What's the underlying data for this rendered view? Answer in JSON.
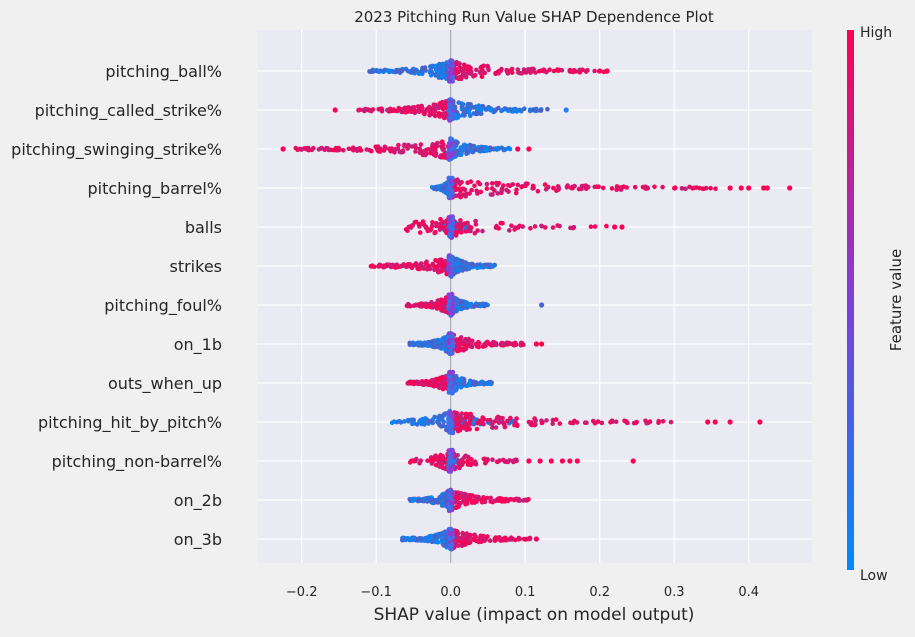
{
  "chart_data": {
    "type": "scatter",
    "subtype": "shap-beeswarm",
    "title": "2023 Pitching Run Value SHAP Dependence Plot",
    "xlabel": "SHAP value (impact on model output)",
    "ylabel": "",
    "xlim": [
      -0.26,
      0.485
    ],
    "x_ticks": [
      -0.2,
      -0.1,
      0.0,
      0.1,
      0.2,
      0.3,
      0.4
    ],
    "x_tick_labels": [
      "−0.2",
      "−0.1",
      "0.0",
      "0.1",
      "0.2",
      "0.3",
      "0.4"
    ],
    "grid": true,
    "colorbar": {
      "label": "Feature value",
      "high_label": "High",
      "low_label": "Low",
      "low_color": "#008bfb",
      "high_color": "#ff0052"
    },
    "features": [
      {
        "name": "pitching_ball%",
        "low_min": -0.11,
        "low_max": -0.005,
        "high_min": 0.0,
        "high_max": 0.21,
        "sparse": [
          0.2,
          0.21
        ]
      },
      {
        "name": "pitching_called_strike%",
        "low_min": 0.0,
        "low_max": 0.13,
        "high_min": -0.125,
        "high_max": 0.0,
        "sparse": [
          -0.155,
          0.155
        ]
      },
      {
        "name": "pitching_swinging_strike%",
        "low_min": 0.0,
        "low_max": 0.08,
        "high_min": -0.21,
        "high_max": 0.0,
        "sparse": [
          -0.225,
          0.09,
          0.105
        ]
      },
      {
        "name": "pitching_barrel%",
        "low_min": -0.025,
        "low_max": 0.0,
        "high_min": 0.0,
        "high_max": 0.36,
        "sparse": [
          0.375,
          0.39,
          0.4,
          0.42,
          0.425,
          0.455
        ]
      },
      {
        "name": "balls",
        "low_min": -0.01,
        "low_max": 0.025,
        "high_min": -0.06,
        "high_max": 0.21,
        "sparse": [
          0.22,
          0.23
        ]
      },
      {
        "name": "strikes",
        "low_min": 0.0,
        "low_max": 0.06,
        "high_min": -0.11,
        "high_max": 0.0,
        "sparse": []
      },
      {
        "name": "pitching_foul%",
        "low_min": 0.0,
        "low_max": 0.05,
        "high_min": -0.06,
        "high_max": 0.0,
        "sparse": [
          0.122
        ]
      },
      {
        "name": "on_1b",
        "low_min": -0.055,
        "low_max": 0.0,
        "high_min": 0.0,
        "high_max": 0.1,
        "sparse": [
          0.115,
          0.122
        ]
      },
      {
        "name": "outs_when_up",
        "low_min": 0.0,
        "low_max": 0.055,
        "high_min": -0.06,
        "high_max": 0.0,
        "sparse": []
      },
      {
        "name": "pitching_hit_by_pitch%",
        "low_min": -0.08,
        "low_max": 0.1,
        "high_min": 0.0,
        "high_max": 0.3,
        "sparse": [
          0.345,
          0.355,
          0.375,
          0.415
        ]
      },
      {
        "name": "pitching_non-barrel%",
        "low_min": -0.01,
        "low_max": 0.01,
        "high_min": -0.055,
        "high_max": 0.09,
        "sparse": [
          0.105,
          0.12,
          0.135,
          0.15,
          0.16,
          0.17,
          0.245
        ]
      },
      {
        "name": "on_2b",
        "low_min": -0.055,
        "low_max": 0.0,
        "high_min": 0.0,
        "high_max": 0.105,
        "sparse": []
      },
      {
        "name": "on_3b",
        "low_min": -0.065,
        "low_max": 0.0,
        "high_min": 0.0,
        "high_max": 0.11,
        "sparse": [
          0.115
        ]
      }
    ]
  }
}
